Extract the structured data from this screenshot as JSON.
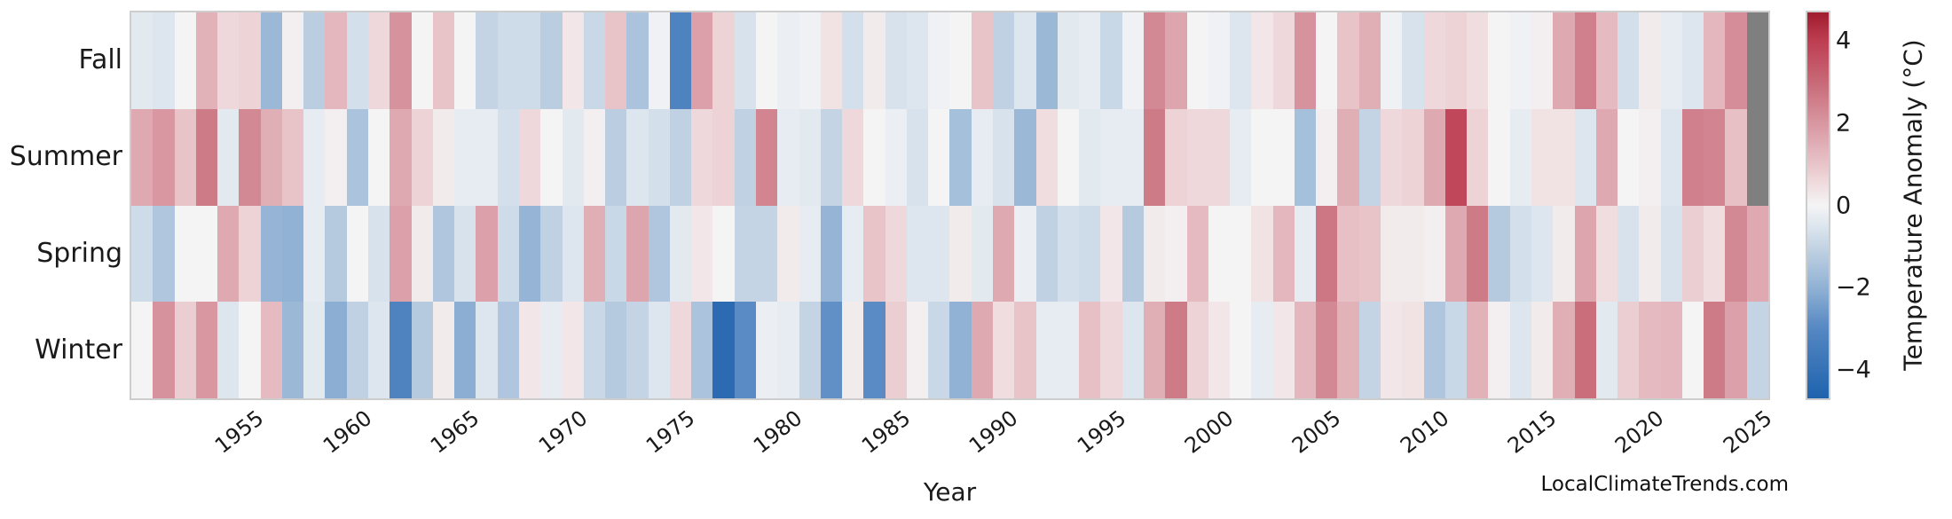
{
  "axes": {
    "xlabel": "Year",
    "x_tick_years": [
      1955,
      1960,
      1965,
      1970,
      1975,
      1980,
      1985,
      1990,
      1995,
      2000,
      2005,
      2010,
      2015,
      2020,
      2025
    ],
    "colorbar_label": "Temperature Anomaly (°C)",
    "colorbar_ticks": [
      {
        "value": 4,
        "label": "4"
      },
      {
        "value": 2,
        "label": "2"
      },
      {
        "value": 0,
        "label": "0"
      },
      {
        "value": -2,
        "label": "−2"
      },
      {
        "value": -4,
        "label": "−4"
      }
    ]
  },
  "watermark": "LocalClimateTrends.com",
  "colors": {
    "missing_cell": "#7f7f7f",
    "axis_border": "#cdcdcd",
    "text": "#1a1a1a",
    "colormap_anchors": [
      [
        -4.7,
        "#1f63ad"
      ],
      [
        -3.0,
        "#5587c3"
      ],
      [
        -2.0,
        "#91b2d4"
      ],
      [
        -1.0,
        "#c4d4e4"
      ],
      [
        -0.5,
        "#dde6ee"
      ],
      [
        0.0,
        "#f4f4f5"
      ],
      [
        0.5,
        "#f0dddf"
      ],
      [
        1.0,
        "#e8c4c9"
      ],
      [
        2.0,
        "#d897a1"
      ],
      [
        3.0,
        "#c86977"
      ],
      [
        4.0,
        "#be3e52"
      ],
      [
        4.7,
        "#a01c2e"
      ]
    ]
  },
  "chart_data": {
    "type": "heatmap",
    "title": "",
    "xlabel": "Year",
    "ylabel": "",
    "legend_label": "Temperature Anomaly (°C)",
    "vmin": -4.7,
    "vmax": 4.7,
    "grid": false,
    "rows": [
      "Fall",
      "Summer",
      "Spring",
      "Winter"
    ],
    "x": [
      1950,
      1951,
      1952,
      1953,
      1954,
      1955,
      1956,
      1957,
      1958,
      1959,
      1960,
      1961,
      1962,
      1963,
      1964,
      1965,
      1966,
      1967,
      1968,
      1969,
      1970,
      1971,
      1972,
      1973,
      1974,
      1975,
      1976,
      1977,
      1978,
      1979,
      1980,
      1981,
      1982,
      1983,
      1984,
      1985,
      1986,
      1987,
      1988,
      1989,
      1990,
      1991,
      1992,
      1993,
      1994,
      1995,
      1996,
      1997,
      1998,
      1999,
      2000,
      2001,
      2002,
      2003,
      2004,
      2005,
      2006,
      2007,
      2008,
      2009,
      2010,
      2011,
      2012,
      2013,
      2014,
      2015,
      2016,
      2017,
      2018,
      2019,
      2020,
      2021,
      2022,
      2023,
      2024,
      2025
    ],
    "series": [
      {
        "name": "Fall",
        "values": [
          -0.4,
          -0.5,
          0,
          1.4,
          0.6,
          0.7,
          -1.8,
          0.1,
          -1.2,
          1.3,
          -0.7,
          0.6,
          2.1,
          0,
          1,
          0,
          -1,
          -0.8,
          -0.8,
          -1.2,
          0.3,
          -0.9,
          1,
          -1.5,
          -0.1,
          -3.2,
          1.8,
          0.7,
          -0.6,
          0,
          -0.2,
          -0.1,
          0.4,
          -0.7,
          0.2,
          -0.6,
          -0.5,
          -0.1,
          0,
          1,
          -1.1,
          -0.5,
          -1.8,
          -0.4,
          -0.3,
          -0.9,
          -0.1,
          2.3,
          1.7,
          0,
          -0.1,
          -0.5,
          0.3,
          0.6,
          2.1,
          0,
          1,
          1.5,
          -0.1,
          -0.6,
          0.6,
          0.7,
          0.5,
          0,
          -0.1,
          0.1,
          1.6,
          2.5,
          1.2,
          -0.7,
          0.2,
          -0.3,
          -0.5,
          1.3,
          2.2,
          null
        ]
      },
      {
        "name": "Summer",
        "values": [
          1.6,
          2,
          1,
          2.6,
          -0.4,
          2.3,
          1.5,
          1,
          -0.3,
          0.1,
          -1.5,
          0,
          1.6,
          0.7,
          0.2,
          -0.3,
          -0.3,
          -0.7,
          0.6,
          0,
          -0.4,
          0.1,
          -1.2,
          -0.5,
          -0.7,
          -1.1,
          0.6,
          0.7,
          -1.1,
          2.4,
          -0.3,
          -0.4,
          -1,
          0.6,
          0,
          -0.2,
          -0.6,
          0,
          -1.6,
          -0.3,
          -0.6,
          -1.8,
          0.5,
          0,
          -0.4,
          -0.3,
          -0.3,
          2.6,
          0.7,
          0.6,
          0.6,
          -0.3,
          0,
          0,
          -1.6,
          0.1,
          1.5,
          -1,
          0.6,
          0.7,
          1.6,
          3.8,
          0.7,
          0,
          -0.3,
          0.4,
          0.4,
          -0.5,
          1.6,
          0,
          0.1,
          -0.5,
          2.5,
          2.4,
          1.1,
          null
        ]
      },
      {
        "name": "Spring",
        "values": [
          -0.8,
          -1.4,
          0,
          0,
          1.6,
          0.7,
          -1.9,
          -2,
          -0.3,
          -1.3,
          0,
          -0.6,
          1.8,
          0.2,
          -1.4,
          -0.6,
          1.8,
          -0.8,
          -1.9,
          -1.1,
          -0.5,
          1.5,
          -0.9,
          1.7,
          -1.4,
          -0.4,
          0.3,
          0,
          -1,
          -1,
          0.2,
          -0.3,
          -1.9,
          -0.3,
          1,
          0.6,
          -0.5,
          -0.5,
          0.2,
          -0.4,
          1.6,
          -0.2,
          -1.1,
          -0.7,
          -0.8,
          0.3,
          -1.3,
          0.2,
          0.1,
          1.2,
          0,
          0,
          0.4,
          1.3,
          -0.3,
          2.7,
          1.1,
          1,
          0.2,
          0.2,
          0.1,
          1.6,
          2.6,
          -1.3,
          -0.7,
          -0.5,
          0.2,
          1.7,
          0.5,
          -0.6,
          0.2,
          -0.6,
          0.8,
          0.5,
          2.3,
          1.6
        ]
      },
      {
        "name": "Winter",
        "values": [
          0,
          2.1,
          0.8,
          2,
          -0.5,
          0,
          1.2,
          -1.8,
          -0.4,
          -2.1,
          -1.1,
          -0.5,
          -3.2,
          -1.3,
          0.2,
          -2.1,
          -0.5,
          -1.4,
          0.3,
          -0.3,
          0.3,
          -0.9,
          -1.3,
          -1,
          -0.5,
          0.6,
          -1.5,
          -4.3,
          -2.9,
          -0.2,
          -0.3,
          -1,
          -2.8,
          0.2,
          -2.9,
          0.8,
          0.1,
          -0.9,
          -2,
          1.6,
          0.5,
          1,
          -0.3,
          -0.3,
          1.1,
          0.6,
          -0.5,
          1.5,
          2.6,
          0.7,
          0.3,
          0,
          -0.3,
          0.3,
          1.3,
          2.3,
          1.4,
          -1,
          0.3,
          0.4,
          -1.4,
          -0.9,
          1.4,
          0.1,
          -0.5,
          0.2,
          1.5,
          2.9,
          -0.4,
          0.8,
          1.2,
          1.3,
          0,
          2.6,
          1.8,
          -1
        ]
      }
    ]
  }
}
